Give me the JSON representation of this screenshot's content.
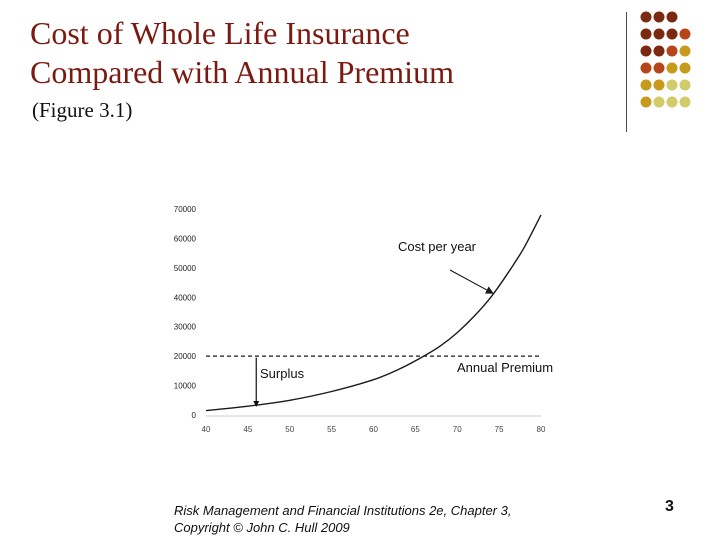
{
  "slide": {
    "title_line1": "Cost of Whole Life Insurance",
    "title_line2": "Compared with Annual Premium",
    "subtitle": "(Figure 3.1)",
    "footer_line1": "Risk Management and Financial Institutions 2e,  Chapter 3,",
    "footer_line2": "Copyright © John C. Hull 2009",
    "page_number": "3"
  },
  "decoration": {
    "dot_colors": [
      "#7a2a10",
      "#b6451a",
      "#c89a1c",
      "#d2cb6a"
    ]
  },
  "chart_data": {
    "type": "line",
    "title": "",
    "xlabel": "",
    "ylabel": "",
    "xlim": [
      40,
      80
    ],
    "ylim": [
      0,
      70000
    ],
    "x_ticks": [
      "40",
      "45",
      "50",
      "55",
      "60",
      "65",
      "70",
      "75",
      "80"
    ],
    "y_ticks": [
      "0",
      "10000",
      "20000",
      "30000",
      "40000",
      "50000",
      "60000",
      "70000"
    ],
    "series": [
      {
        "name": "Cost per year",
        "style": "solid",
        "color": "#1a1a1a",
        "x": [
          40,
          45,
          50,
          55,
          60,
          63,
          66,
          68,
          70,
          72,
          74,
          76,
          78,
          80
        ],
        "y": [
          1500,
          3000,
          5000,
          8000,
          12000,
          15500,
          20000,
          23500,
          28000,
          33500,
          40000,
          48000,
          57000,
          68000
        ]
      },
      {
        "name": "Annual Premium",
        "style": "dashed",
        "color": "#1a1a1a",
        "x": [
          40,
          80
        ],
        "y": [
          20000,
          20000
        ]
      }
    ],
    "annotations": [
      {
        "text": "Cost per year",
        "at": [
          74.5,
          40000
        ]
      },
      {
        "text": "Annual Premium",
        "at": null
      },
      {
        "text": "Surplus",
        "at": [
          46,
          19500
        ]
      }
    ],
    "grid": false,
    "legend": "none"
  }
}
